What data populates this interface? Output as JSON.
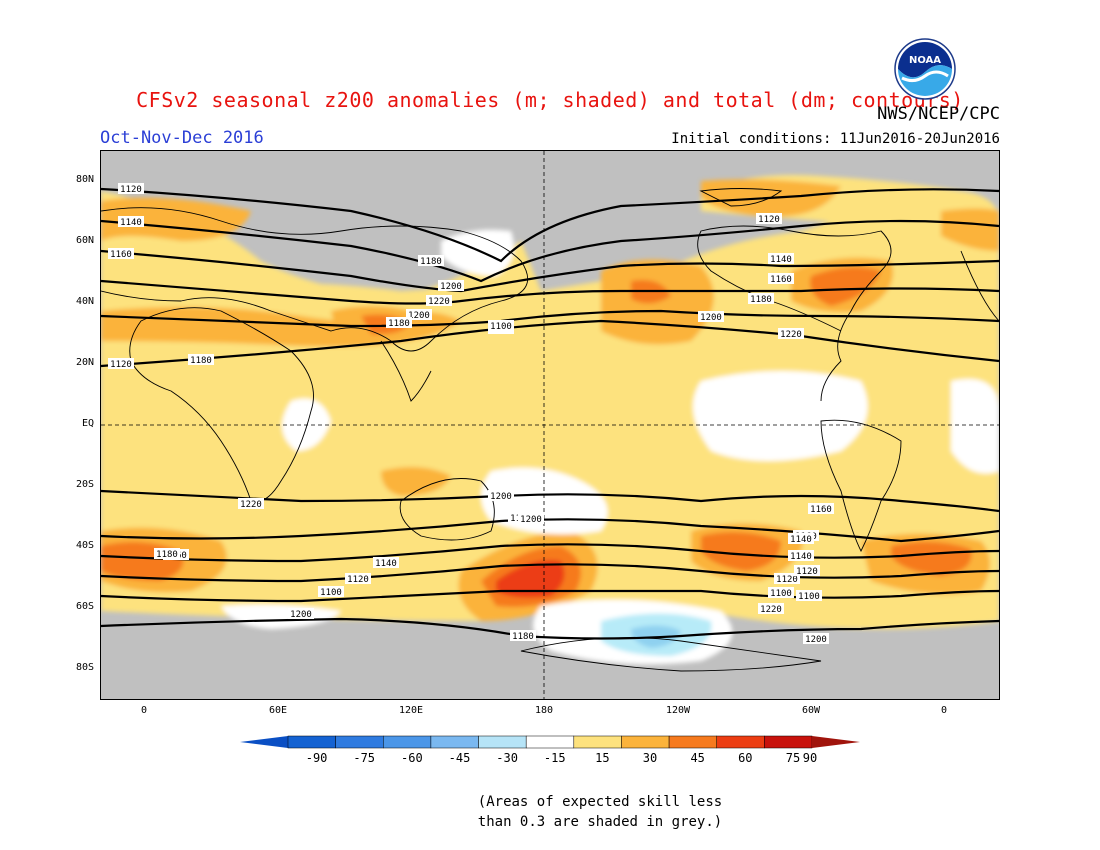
{
  "header": {
    "title": "CFSv2 seasonal z200 anomalies (m; shaded) and total (dm; contours)",
    "season": "Oct-Nov-Dec 2016",
    "agency": "NWS/NCEP/CPC",
    "initial_conditions": "Initial conditions: 11Jun2016-20Jun2016",
    "logo_text": "NOAA"
  },
  "map": {
    "lat_labels": [
      "80N",
      "60N",
      "40N",
      "20N",
      "EQ",
      "20S",
      "40S",
      "60S",
      "80S"
    ],
    "lon_labels": [
      "0",
      "60E",
      "120E",
      "180",
      "120W",
      "60W",
      "0"
    ],
    "contour_labels": [
      "1120",
      "1140",
      "1160",
      "1180",
      "1200",
      "1220",
      "1200",
      "1180",
      "1160",
      "1140",
      "1120",
      "1100",
      "1160",
      "1180",
      "1120",
      "1140",
      "1200",
      "1220",
      "1220",
      "1200",
      "1180",
      "1160",
      "1140",
      "1120",
      "1100",
      "1200",
      "1180",
      "1160",
      "1140",
      "1120",
      "1100",
      "1220",
      "1200",
      "1180",
      "1160",
      "1140",
      "1120",
      "1100",
      "1180",
      "1200"
    ],
    "colors": {
      "grey_skill": "#c0c0c0",
      "white": "#ffffff",
      "light_yellow": "#fde27e",
      "yellow_orange": "#fbb33b",
      "orange": "#f67a1e",
      "red_orange": "#ec3d12",
      "light_blue": "#b7ebf8",
      "mid_blue": "#8fd1f0"
    }
  },
  "colorbar": {
    "ticks": [
      "-90",
      "-75",
      "-60",
      "-45",
      "-30",
      "-15",
      "15",
      "30",
      "45",
      "60",
      "75",
      "90"
    ],
    "colors": [
      "#1462d2",
      "#2f7be0",
      "#4b96e8",
      "#7ab8f0",
      "#b6e4f7",
      "#ffffff",
      "#fde27e",
      "#fbb33b",
      "#f67a1e",
      "#ec3d12",
      "#c8120c"
    ],
    "end_low": "#0a4fc4",
    "end_high": "#a0140c"
  },
  "footnote": {
    "line1": "(Areas of expected skill less",
    "line2": "than 0.3 are shaded in grey.)"
  }
}
